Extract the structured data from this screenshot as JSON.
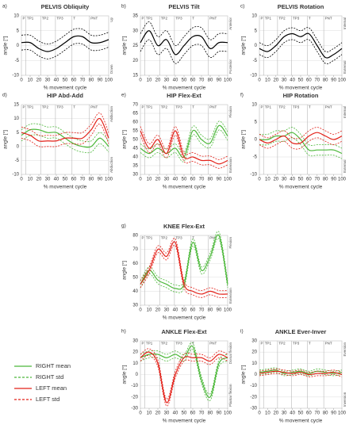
{
  "shared": {
    "x": [
      0,
      10,
      20,
      30,
      40,
      50,
      60,
      70,
      80,
      90,
      100
    ],
    "xlim": [
      0,
      100
    ],
    "xticks": [
      0,
      10,
      20,
      30,
      40,
      50,
      60,
      70,
      80,
      90,
      100
    ],
    "xlabel": "% movement cycle",
    "ylabel": "angle [°]",
    "phases": [
      {
        "label": "P",
        "x": 0
      },
      {
        "label": "TP1",
        "x": 5
      },
      {
        "label": "TP2",
        "x": 22
      },
      {
        "label": "TP3",
        "x": 39
      },
      {
        "label": "T",
        "x": 58
      },
      {
        "label": "PNT",
        "x": 78
      }
    ],
    "legend": [
      {
        "name": "RIGHT mean",
        "color": "#4cb83a",
        "dashed": false
      },
      {
        "name": "RIGHT std",
        "color": "#4cb83a",
        "dashed": true
      },
      {
        "name": "LEFT mean",
        "color": "#e32119",
        "dashed": false
      },
      {
        "name": "LEFT std",
        "color": "#e32119",
        "dashed": true
      }
    ]
  },
  "chart_data": [
    {
      "type": "line",
      "panel": "a)",
      "title": "PELVIS Obliquity",
      "top_label": "Up",
      "bottom_label": "Down",
      "ylim": [
        -10,
        10
      ],
      "yticks": [
        -10,
        -5,
        0,
        5,
        10
      ],
      "series": [
        {
          "color": "#000000",
          "values": [
            1,
            1,
            -1,
            -2,
            -1,
            1,
            3,
            3,
            1,
            1,
            2
          ],
          "std": 2.5
        }
      ]
    },
    {
      "type": "line",
      "panel": "b)",
      "title": "PELVIS Tilt",
      "top_label": "Anterior",
      "bottom_label": "Posterior",
      "ylim": [
        15,
        35
      ],
      "yticks": [
        15,
        20,
        25,
        30,
        35
      ],
      "series": [
        {
          "color": "#000000",
          "values": [
            26,
            30,
            25,
            27,
            22,
            25,
            28,
            28,
            24,
            26,
            26
          ],
          "std": 3
        }
      ]
    },
    {
      "type": "line",
      "panel": "c)",
      "title": "PELVIS Rotation",
      "top_label": "Internal",
      "bottom_label": "External",
      "ylim": [
        -10,
        10
      ],
      "yticks": [
        -10,
        -5,
        0,
        5,
        10
      ],
      "series": [
        {
          "color": "#000000",
          "values": [
            -1,
            -2,
            0,
            3,
            4,
            3,
            4,
            0,
            -4,
            -3,
            -1
          ],
          "std": 2
        }
      ]
    },
    {
      "type": "line",
      "panel": "d)",
      "title": "HIP Abd-Add",
      "top_label": "Adduction",
      "bottom_label": "Abduction",
      "ylim": [
        -10,
        15
      ],
      "yticks": [
        -10,
        -5,
        0,
        5,
        10,
        15
      ],
      "series": [
        {
          "color": "#4cb83a",
          "values": [
            4,
            6,
            6,
            5,
            5,
            3,
            1,
            0,
            0,
            3,
            0
          ],
          "std": 2
        },
        {
          "color": "#e32119",
          "values": [
            5,
            4,
            2,
            2,
            2,
            3,
            3,
            3,
            6,
            10,
            3
          ],
          "std": 2
        }
      ]
    },
    {
      "type": "line",
      "panel": "e)",
      "title": "HIP Flex-Ext",
      "top_label": "Flexion",
      "bottom_label": "Extension",
      "ylim": [
        30,
        70
      ],
      "yticks": [
        30,
        35,
        40,
        45,
        50,
        55,
        60,
        65,
        70
      ],
      "series": [
        {
          "color": "#4cb83a",
          "values": [
            45,
            42,
            45,
            42,
            45,
            40,
            55,
            50,
            48,
            58,
            52
          ],
          "std": 2.5
        },
        {
          "color": "#e32119",
          "values": [
            55,
            45,
            50,
            42,
            55,
            40,
            40,
            38,
            38,
            36,
            38
          ],
          "std": 2.5
        }
      ]
    },
    {
      "type": "line",
      "panel": "f)",
      "title": "HIP Rotation",
      "top_label": "Internal",
      "bottom_label": "External",
      "ylim": [
        -10,
        10
      ],
      "yticks": [
        -10,
        -5,
        0,
        5,
        10
      ],
      "series": [
        {
          "color": "#4cb83a",
          "values": [
            0,
            0,
            1,
            1,
            2,
            0,
            -3,
            -3,
            -3,
            -3,
            -4
          ],
          "std": 1.5
        },
        {
          "color": "#e32119",
          "values": [
            0,
            -1,
            0,
            1,
            -1,
            -1,
            1,
            2,
            1,
            0,
            1
          ],
          "std": 1.5
        }
      ]
    },
    {
      "type": "line",
      "panel": "g)",
      "title": "KNEE Flex-Ext",
      "top_label": "Flexion",
      "bottom_label": "Extension",
      "ylim": [
        30,
        80
      ],
      "yticks": [
        30,
        40,
        50,
        60,
        70,
        80
      ],
      "series": [
        {
          "color": "#4cb83a",
          "values": [
            45,
            55,
            48,
            45,
            42,
            45,
            75,
            55,
            65,
            80,
            45
          ],
          "std": 2.5
        },
        {
          "color": "#e32119",
          "values": [
            45,
            55,
            70,
            65,
            75,
            45,
            40,
            38,
            40,
            38,
            38
          ],
          "std": 2.5
        }
      ]
    },
    {
      "type": "line",
      "panel": "h)",
      "title": "ANKLE Flex-Ext",
      "top_label": "Dorsal flexion",
      "bottom_label": "Plantar flexion",
      "ylim": [
        -30,
        30
      ],
      "yticks": [
        -30,
        -20,
        -10,
        0,
        10,
        20,
        30
      ],
      "series": [
        {
          "color": "#4cb83a",
          "values": [
            15,
            18,
            18,
            15,
            18,
            15,
            25,
            -5,
            -20,
            10,
            15
          ],
          "std": 3
        },
        {
          "color": "#e32119",
          "values": [
            15,
            20,
            10,
            -25,
            0,
            15,
            15,
            15,
            12,
            18,
            15
          ],
          "std": 3
        }
      ]
    },
    {
      "type": "line",
      "panel": "i)",
      "title": "ANKLE Ever-Inver",
      "top_label": "Eversion",
      "bottom_label": "Inversion",
      "ylim": [
        -30,
        30
      ],
      "yticks": [
        -30,
        -20,
        -10,
        0,
        10,
        20,
        30
      ],
      "series": [
        {
          "color": "#4cb83a",
          "values": [
            2,
            3,
            4,
            1,
            2,
            3,
            1,
            3,
            2,
            1,
            2
          ],
          "std": 2
        },
        {
          "color": "#e32119",
          "values": [
            1,
            2,
            3,
            2,
            1,
            2,
            0,
            1,
            1,
            2,
            0
          ],
          "std": 2
        }
      ]
    }
  ]
}
